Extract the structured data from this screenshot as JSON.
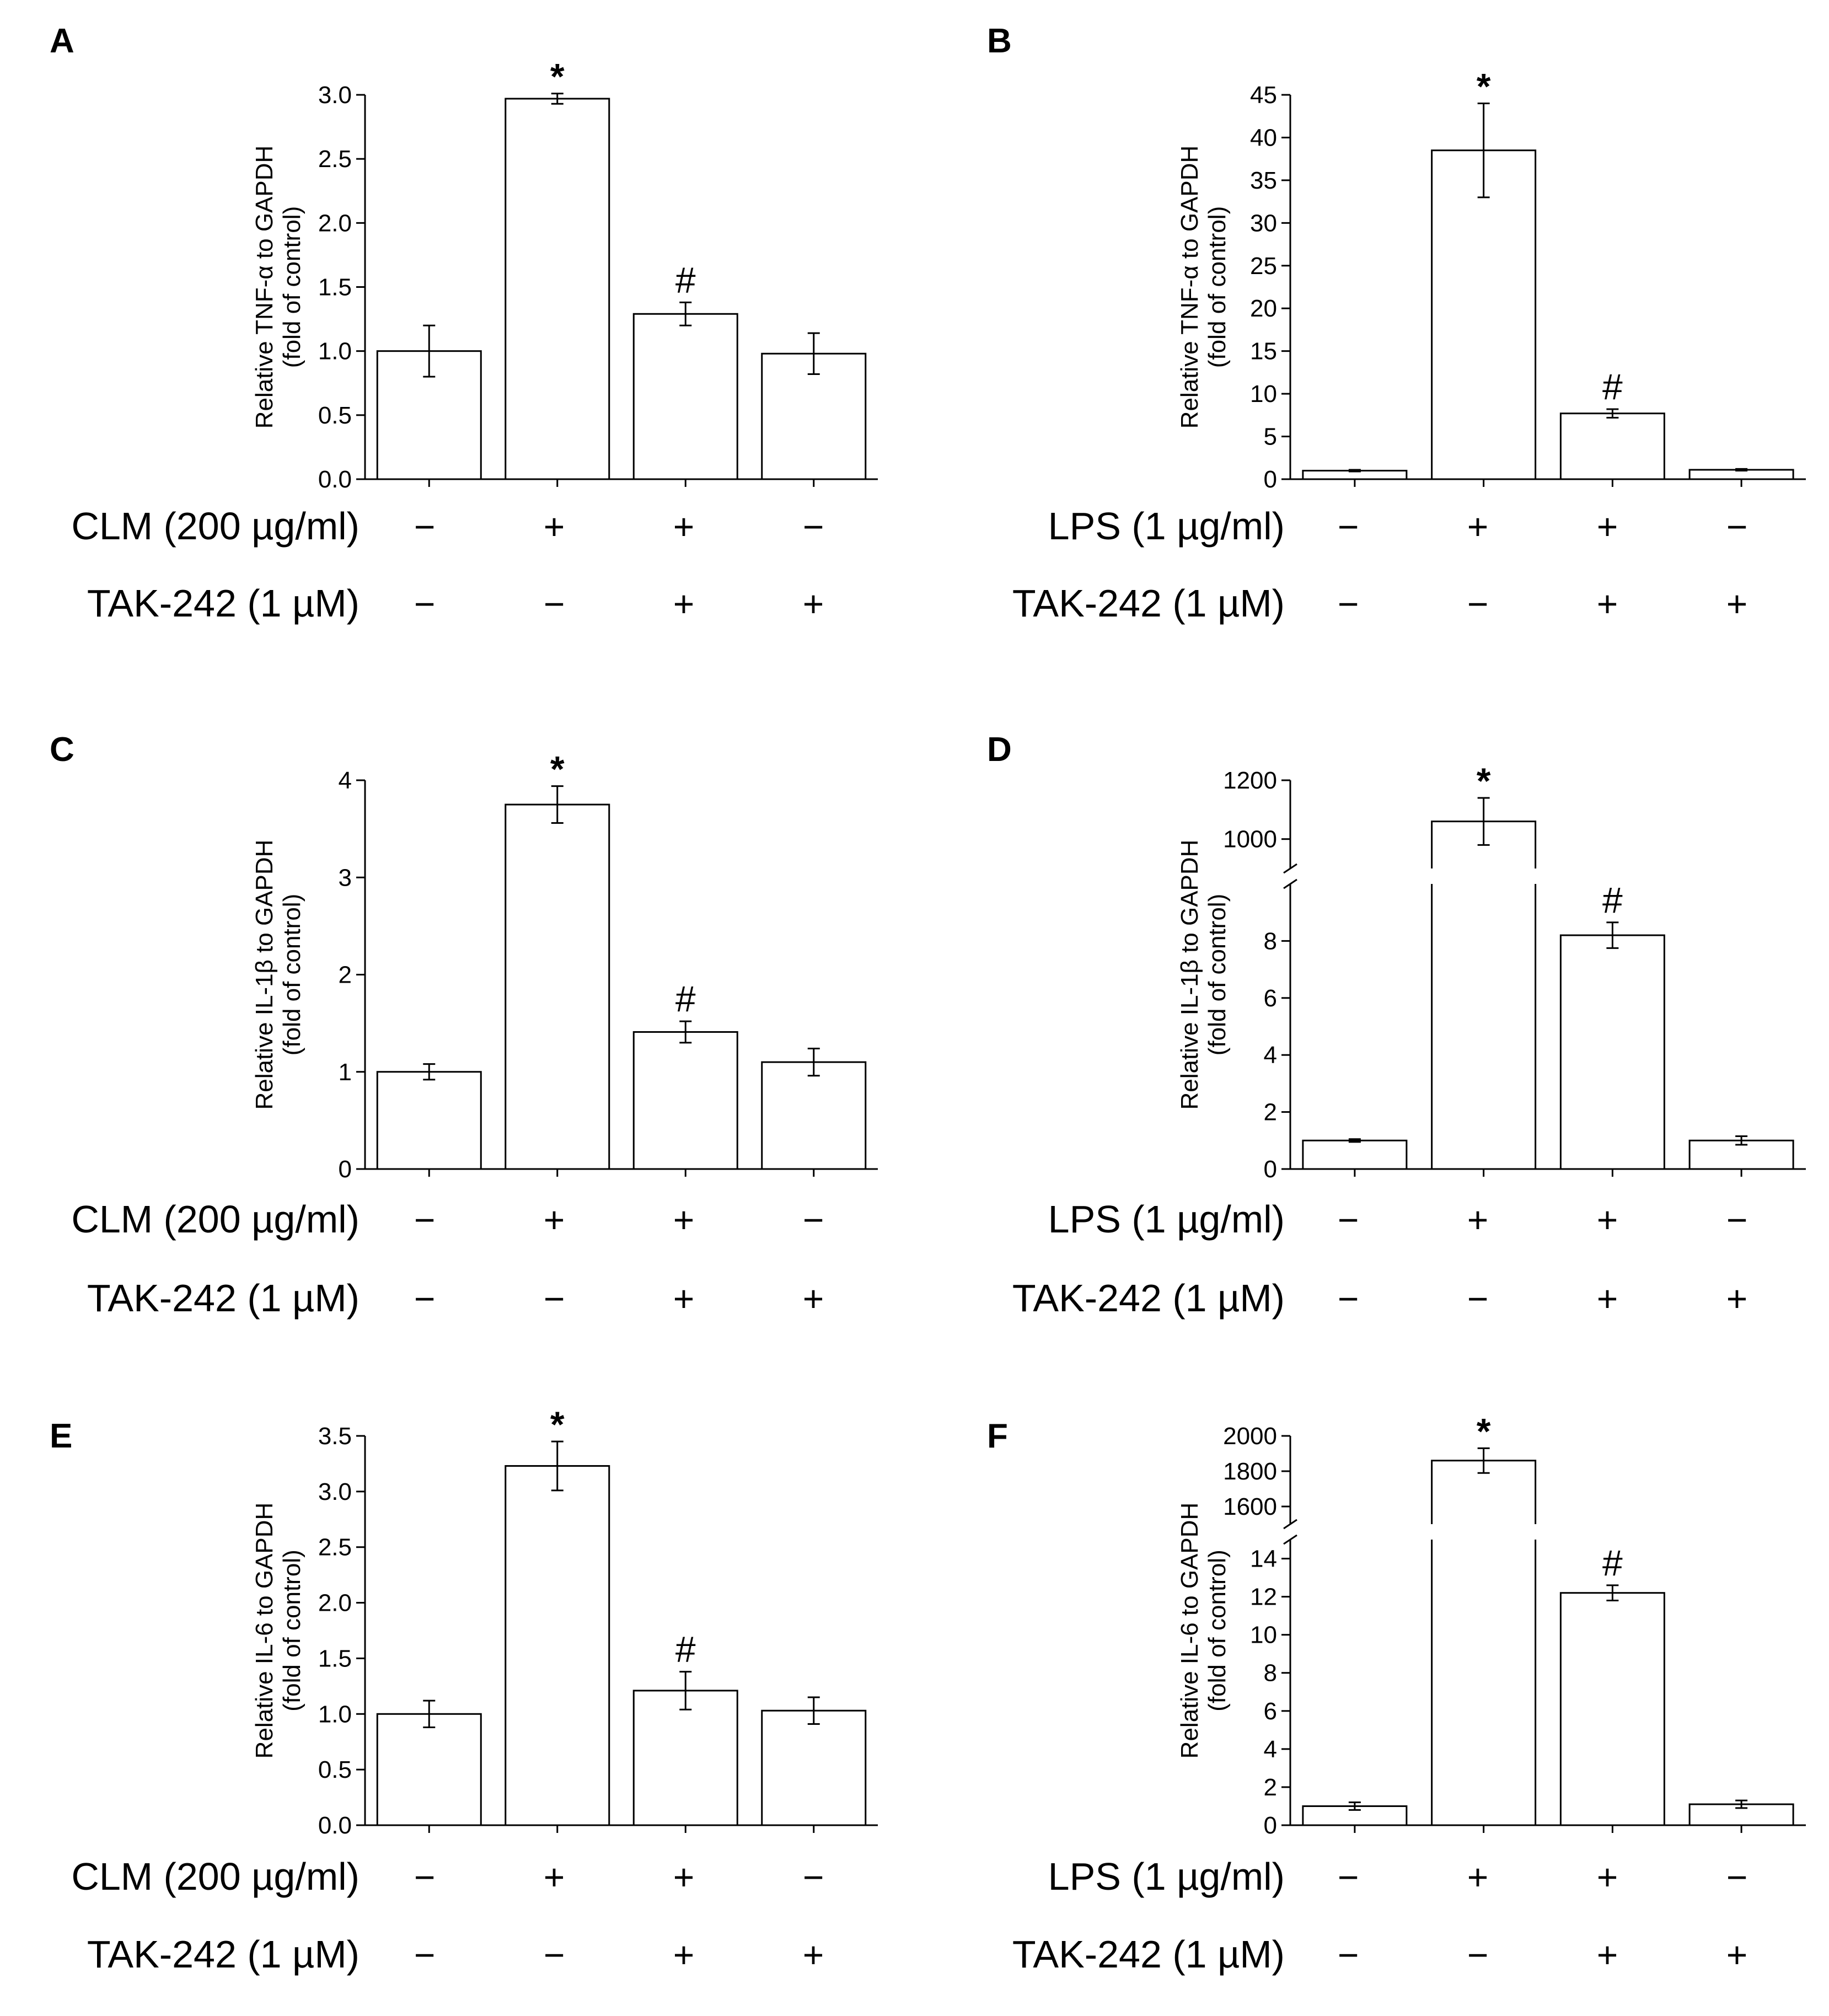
{
  "figure": {
    "sign_plus": "+",
    "sign_minus": "−"
  },
  "chart_data": [
    {
      "panel": "A",
      "type": "bar",
      "ylabel_line1": "Relative TNF-α to GAPDH",
      "ylabel_line2": "(fold of control)",
      "ylim": [
        0,
        3.0
      ],
      "yticks": [
        "0.0",
        "0.5",
        "1.0",
        "1.5",
        "2.0",
        "2.5",
        "3.0"
      ],
      "break": null,
      "values": [
        1.0,
        2.97,
        1.29,
        0.98
      ],
      "errors": [
        0.2,
        0.04,
        0.09,
        0.16
      ],
      "significance": [
        "",
        "*",
        "#",
        ""
      ],
      "conditions": [
        {
          "label": "CLM (200 µg/ml)",
          "signs": [
            "minus",
            "plus",
            "plus",
            "minus"
          ]
        },
        {
          "label": "TAK-242 (1 µM)",
          "signs": [
            "minus",
            "minus",
            "plus",
            "plus"
          ]
        }
      ]
    },
    {
      "panel": "B",
      "type": "bar",
      "ylabel_line1": "Relative TNF-α to GAPDH",
      "ylabel_line2": "(fold of control)",
      "ylim": [
        0,
        45
      ],
      "yticks": [
        "0",
        "5",
        "10",
        "15",
        "20",
        "25",
        "30",
        "35",
        "40",
        "45"
      ],
      "break": null,
      "values": [
        1.0,
        38.5,
        7.7,
        1.1
      ],
      "errors": [
        0.1,
        5.5,
        0.5,
        0.1
      ],
      "significance": [
        "",
        "*",
        "#",
        ""
      ],
      "conditions": [
        {
          "label": "LPS (1 µg/ml)",
          "signs": [
            "minus",
            "plus",
            "plus",
            "minus"
          ]
        },
        {
          "label": "TAK-242 (1 µM)",
          "signs": [
            "minus",
            "minus",
            "plus",
            "plus"
          ]
        }
      ]
    },
    {
      "panel": "C",
      "type": "bar",
      "ylabel_line1": "Relative IL-1β to GAPDH",
      "ylabel_line2": "(fold of control)",
      "ylim": [
        0,
        4
      ],
      "yticks": [
        "0",
        "1",
        "2",
        "3",
        "4"
      ],
      "break": null,
      "values": [
        1.0,
        3.75,
        1.41,
        1.1
      ],
      "errors": [
        0.08,
        0.19,
        0.11,
        0.14
      ],
      "significance": [
        "",
        "*",
        "#",
        ""
      ],
      "conditions": [
        {
          "label": "CLM (200 µg/ml)",
          "signs": [
            "minus",
            "plus",
            "plus",
            "minus"
          ]
        },
        {
          "label": "TAK-242 (1 µM)",
          "signs": [
            "minus",
            "minus",
            "plus",
            "plus"
          ]
        }
      ]
    },
    {
      "panel": "D",
      "type": "bar",
      "ylabel_line1": "Relative IL-1β to GAPDH",
      "ylabel_line2": "(fold of control)",
      "ylim": [
        0,
        1200
      ],
      "yticks": [
        "0",
        "2",
        "4",
        "6",
        "8",
        "1000",
        "1200"
      ],
      "break": {
        "lower_max": 10,
        "upper_range": [
          900,
          1200
        ]
      },
      "values": [
        1.0,
        1060,
        8.2,
        1.0
      ],
      "errors": [
        0.05,
        80,
        0.45,
        0.15
      ],
      "significance": [
        "",
        "*",
        "#",
        ""
      ],
      "conditions": [
        {
          "label": "LPS (1 µg/ml)",
          "signs": [
            "minus",
            "plus",
            "plus",
            "minus"
          ]
        },
        {
          "label": "TAK-242 (1 µM)",
          "signs": [
            "minus",
            "minus",
            "plus",
            "plus"
          ]
        }
      ]
    },
    {
      "panel": "E",
      "type": "bar",
      "ylabel_line1": "Relative IL-6 to GAPDH",
      "ylabel_line2": "(fold of control)",
      "ylim": [
        0,
        3.5
      ],
      "yticks": [
        "0.0",
        "0.5",
        "1.0",
        "1.5",
        "2.0",
        "2.5",
        "3.0",
        "3.5"
      ],
      "break": null,
      "values": [
        1.0,
        3.23,
        1.21,
        1.03
      ],
      "errors": [
        0.12,
        0.22,
        0.17,
        0.12
      ],
      "significance": [
        "",
        "*",
        "#",
        ""
      ],
      "conditions": [
        {
          "label": "CLM (200 µg/ml)",
          "signs": [
            "minus",
            "plus",
            "plus",
            "minus"
          ]
        },
        {
          "label": "TAK-242 (1 µM)",
          "signs": [
            "minus",
            "minus",
            "plus",
            "plus"
          ]
        }
      ]
    },
    {
      "panel": "F",
      "type": "bar",
      "ylabel_line1": "Relative IL-6 to GAPDH",
      "ylabel_line2": "(fold of control)",
      "ylim": [
        0,
        2000
      ],
      "yticks": [
        "0",
        "2",
        "4",
        "6",
        "8",
        "10",
        "12",
        "14",
        "1600",
        "1800",
        "2000"
      ],
      "break": {
        "lower_max": 15,
        "upper_range": [
          1500,
          2000
        ]
      },
      "values": [
        1.0,
        1860,
        12.2,
        1.1
      ],
      "errors": [
        0.2,
        70,
        0.4,
        0.2
      ],
      "significance": [
        "",
        "*",
        "#",
        ""
      ],
      "conditions": [
        {
          "label": "LPS (1 µg/ml)",
          "signs": [
            "minus",
            "plus",
            "plus",
            "minus"
          ]
        },
        {
          "label": "TAK-242 (1 µM)",
          "signs": [
            "minus",
            "minus",
            "plus",
            "plus"
          ]
        }
      ]
    }
  ]
}
